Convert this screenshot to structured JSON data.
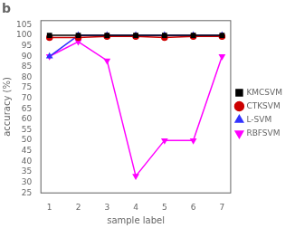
{
  "chart_data": {
    "type": "line",
    "title": "b",
    "x_label": "sample label",
    "y_label": "accuracy (%)",
    "x": [
      1,
      2,
      3,
      4,
      5,
      6,
      7
    ],
    "series": [
      {
        "name": "KMCSVM",
        "color": "#000000",
        "marker": "square",
        "values": [
          100,
          100,
          100,
          100,
          100,
          100,
          100
        ]
      },
      {
        "name": "CTKSVM",
        "color": "#cc0000",
        "marker": "circle",
        "values": [
          99.0,
          99.0,
          99.5,
          99.5,
          99.0,
          99.5,
          99.5
        ]
      },
      {
        "name": "L-SVM",
        "color": "#3333ff",
        "marker": "triangle",
        "values": [
          90,
          100,
          100,
          100,
          100,
          100,
          100
        ]
      },
      {
        "name": "RBFSVM",
        "color": "#ff00ff",
        "marker": "triangle_down",
        "values": [
          90,
          97,
          88,
          33,
          50,
          50,
          90
        ]
      }
    ],
    "xlim": [
      0.7,
      7.3
    ],
    "xticks": [
      1,
      2,
      3,
      4,
      5,
      6,
      7
    ],
    "ylim": [
      25,
      107
    ],
    "yticks": [
      25,
      30,
      35,
      40,
      45,
      50,
      55,
      60,
      65,
      70,
      75,
      80,
      85,
      90,
      95,
      100,
      105
    ],
    "grid": false,
    "legend": "right"
  }
}
